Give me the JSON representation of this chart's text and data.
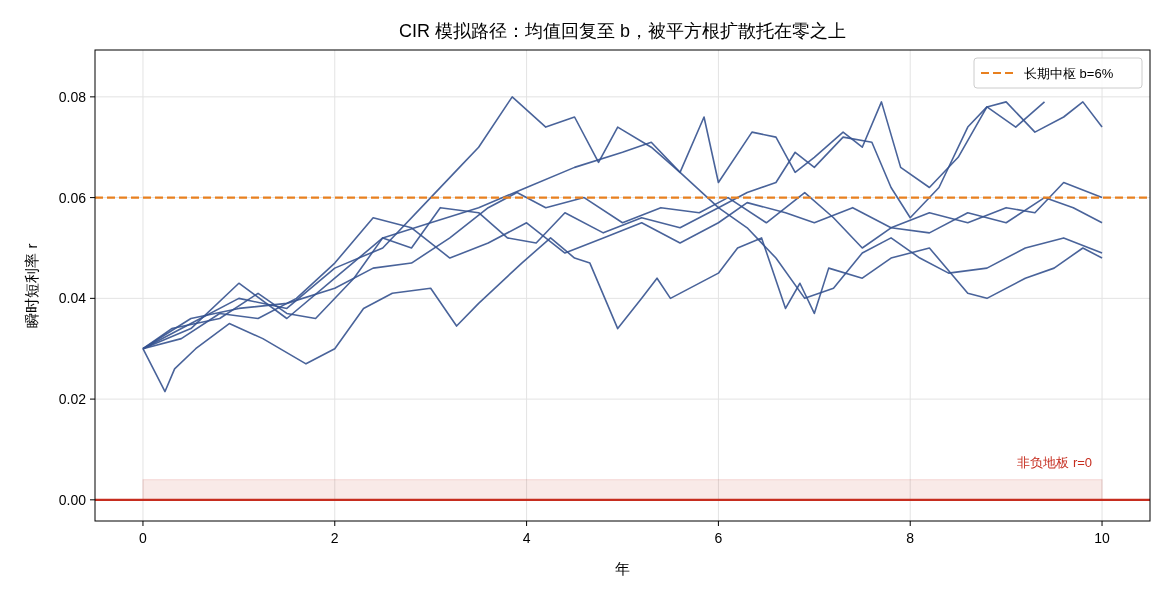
{
  "chart_data": {
    "type": "line",
    "title": "CIR 模拟路径：均值回复至 b，被平方根扩散托在零之上",
    "xlabel": "年",
    "ylabel": "瞬时短利率 r",
    "xlim": [
      -0.5,
      10.5
    ],
    "ylim": [
      -0.0042,
      0.0893
    ],
    "xticks": [
      0,
      2,
      4,
      6,
      8,
      10
    ],
    "yticks": [
      {
        "value": 0,
        "label": "0.00"
      },
      0.02,
      0.04,
      0.06,
      0.08
    ],
    "grid": true,
    "legend": "top right",
    "series": [
      {
        "color": "#35528f",
        "x": [
          0,
          0.5,
          1,
          1.5,
          2,
          2.5,
          3,
          3.3,
          3.5,
          3.85,
          4.2,
          4.5,
          4.75,
          4.95,
          5.3,
          5.6,
          5.85,
          6,
          6.35,
          6.6,
          6.8,
          7,
          7.3,
          7.5,
          7.7,
          7.9,
          8.2,
          8.5,
          8.8,
          9,
          9.3,
          9.6,
          9.8,
          10
        ],
        "values": [
          0.03,
          0.035,
          0.04,
          0.038,
          0.046,
          0.05,
          0.06,
          0.066,
          0.07,
          0.08,
          0.074,
          0.076,
          0.067,
          0.074,
          0.07,
          0.065,
          0.076,
          0.063,
          0.073,
          0.072,
          0.065,
          0.068,
          0.073,
          0.07,
          0.079,
          0.066,
          0.062,
          0.068,
          0.078,
          0.079,
          0.073,
          0.076,
          0.079,
          0.074
        ]
      },
      {
        "color": "#35528f",
        "x": [
          0,
          0.5,
          1,
          1.5,
          2,
          2.5,
          3,
          3.5,
          4,
          4.5,
          5,
          5.3,
          5.6,
          6,
          6.3,
          6.6,
          6.8,
          7,
          7.3,
          7.6,
          7.8,
          8,
          8.3,
          8.6,
          8.8,
          9.1,
          9.4
        ],
        "values": [
          0.03,
          0.034,
          0.043,
          0.036,
          0.044,
          0.052,
          0.055,
          0.058,
          0.062,
          0.066,
          0.069,
          0.071,
          0.065,
          0.058,
          0.061,
          0.063,
          0.069,
          0.066,
          0.072,
          0.071,
          0.062,
          0.056,
          0.062,
          0.074,
          0.078,
          0.074,
          0.079
        ]
      },
      {
        "color": "#35528f",
        "x": [
          0,
          0.23,
          0.33,
          0.55,
          0.9,
          1.25,
          1.7,
          2,
          2.3,
          2.6,
          3,
          3.27,
          3.5,
          3.95,
          4.25,
          4.5,
          4.66,
          4.95,
          5.2,
          5.36,
          5.5,
          6,
          6.2,
          6.45,
          6.7,
          6.85,
          7,
          7.15,
          7.5,
          7.8,
          8.2,
          8.6,
          8.8,
          9.2,
          9.5,
          9.8,
          10
        ],
        "values": [
          0.03,
          0.0215,
          0.026,
          0.03,
          0.035,
          0.032,
          0.027,
          0.03,
          0.038,
          0.041,
          0.042,
          0.0345,
          0.039,
          0.047,
          0.052,
          0.048,
          0.047,
          0.034,
          0.04,
          0.044,
          0.04,
          0.045,
          0.05,
          0.052,
          0.038,
          0.043,
          0.037,
          0.046,
          0.044,
          0.048,
          0.05,
          0.041,
          0.04,
          0.044,
          0.046,
          0.05,
          0.048
        ]
      },
      {
        "color": "#35528f",
        "x": [
          0,
          0.3,
          0.8,
          1.2,
          1.5,
          1.8,
          2.2,
          2.5,
          2.8,
          3.1,
          3.5,
          3.8,
          4.1,
          4.4,
          4.8,
          5.2,
          5.6,
          6,
          6.3,
          6.6,
          6.9,
          7.2,
          7.5,
          7.8,
          8.1,
          8.4,
          8.8,
          9.2,
          9.6,
          10
        ],
        "values": [
          0.03,
          0.034,
          0.036,
          0.041,
          0.037,
          0.036,
          0.044,
          0.052,
          0.05,
          0.058,
          0.057,
          0.052,
          0.051,
          0.057,
          0.053,
          0.056,
          0.054,
          0.058,
          0.054,
          0.048,
          0.04,
          0.042,
          0.049,
          0.052,
          0.048,
          0.045,
          0.046,
          0.05,
          0.052,
          0.049
        ]
      },
      {
        "color": "#35528f",
        "x": [
          0,
          0.5,
          1,
          1.5,
          2,
          2.4,
          2.8,
          3.2,
          3.6,
          3.9,
          4.2,
          4.6,
          5,
          5.4,
          5.8,
          6.1,
          6.5,
          6.9,
          7.2,
          7.5,
          7.8,
          8.2,
          8.6,
          9,
          9.3,
          9.6,
          10
        ],
        "values": [
          0.03,
          0.036,
          0.038,
          0.039,
          0.042,
          0.046,
          0.047,
          0.052,
          0.058,
          0.061,
          0.058,
          0.06,
          0.055,
          0.058,
          0.057,
          0.06,
          0.055,
          0.061,
          0.056,
          0.05,
          0.054,
          0.057,
          0.055,
          0.058,
          0.057,
          0.063,
          0.06
        ]
      },
      {
        "color": "#35528f",
        "x": [
          0,
          0.4,
          0.8,
          1.2,
          1.6,
          2,
          2.4,
          2.8,
          3.2,
          3.6,
          4,
          4.4,
          4.8,
          5.2,
          5.6,
          6,
          6.3,
          6.7,
          7,
          7.4,
          7.8,
          8.2,
          8.6,
          9,
          9.4,
          9.7,
          10
        ],
        "values": [
          0.03,
          0.032,
          0.037,
          0.036,
          0.04,
          0.047,
          0.056,
          0.054,
          0.048,
          0.051,
          0.055,
          0.049,
          0.052,
          0.055,
          0.051,
          0.055,
          0.059,
          0.057,
          0.055,
          0.058,
          0.054,
          0.053,
          0.057,
          0.055,
          0.06,
          0.058,
          0.055
        ]
      }
    ],
    "ref_lines": [
      {
        "axis": "y",
        "value": 0,
        "color": "#c62d1f"
      },
      {
        "axis": "y",
        "value": 0.06,
        "label": "长期中枢 b=6%",
        "color": "#e8801f",
        "line_style": "dashed"
      }
    ],
    "bands": [
      {
        "axis": "y",
        "from": 0,
        "to": 0.004,
        "label": "非负地板 r=0",
        "color": "#c62d1f"
      }
    ]
  }
}
